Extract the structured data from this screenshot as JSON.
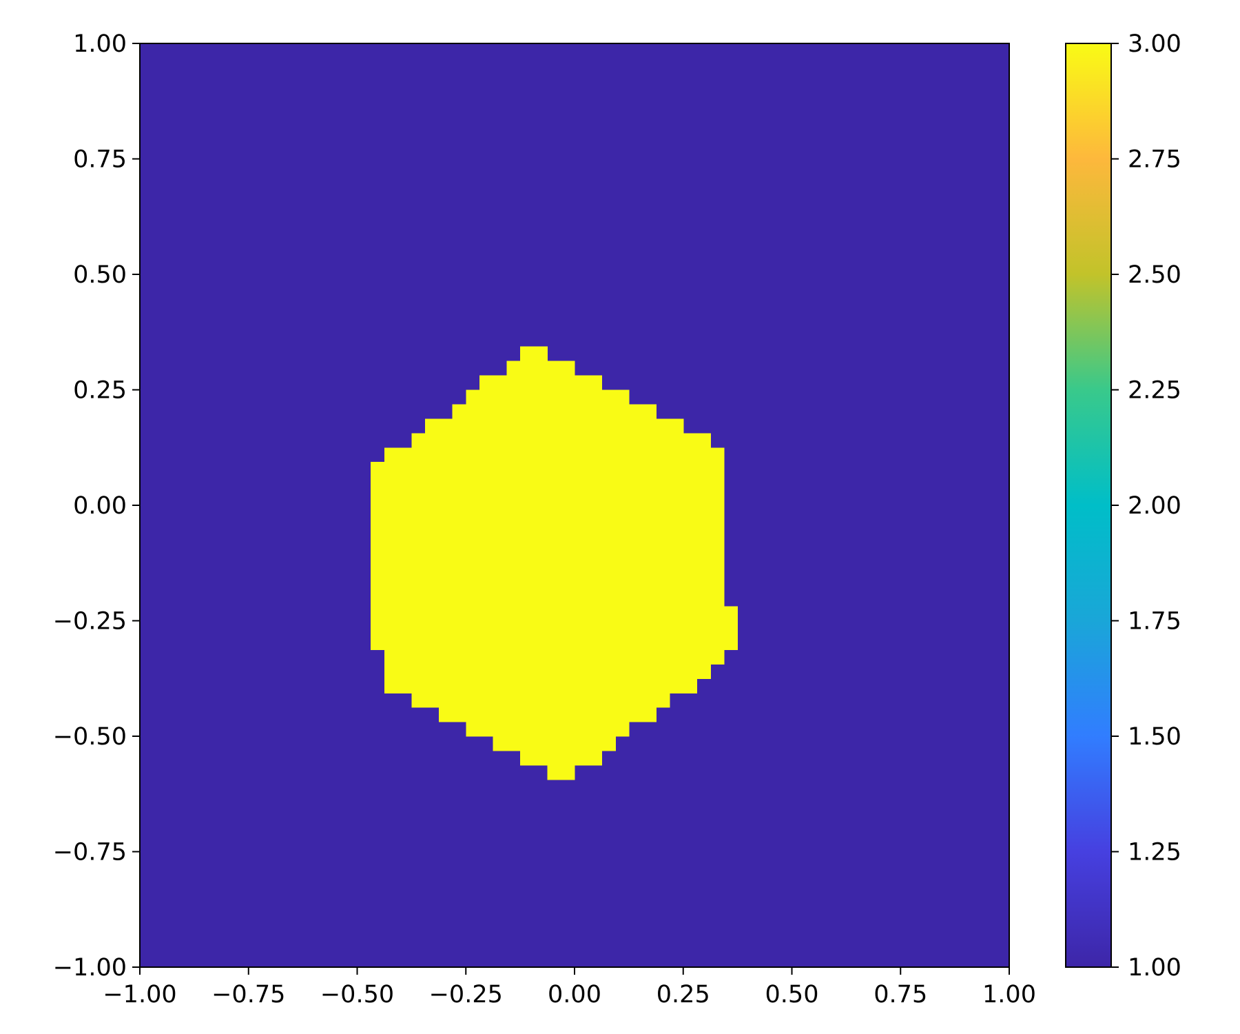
{
  "chart_data": {
    "type": "heatmap",
    "title": "",
    "xlabel": "",
    "ylabel": "",
    "xlim": [
      -1.0,
      1.0
    ],
    "ylim": [
      -1.0,
      1.0
    ],
    "grid": false,
    "x_ticks": [
      "−1.00",
      "−0.75",
      "−0.50",
      "−0.25",
      "0.00",
      "0.25",
      "0.50",
      "0.75",
      "1.00"
    ],
    "y_ticks": [
      "1.00",
      "0.75",
      "0.50",
      "0.25",
      "0.00",
      "−0.25",
      "−0.50",
      "−0.75",
      "−1.00"
    ],
    "background_value": 1.0,
    "region_value": 3.0,
    "grid_cells": 64,
    "region_rows_top_to_bottom": [
      {
        "y": [
          0.3125,
          0.34375
        ],
        "x": [
          -0.125,
          -0.0625
        ]
      },
      {
        "y": [
          0.28125,
          0.3125
        ],
        "x": [
          -0.15625,
          0.0
        ]
      },
      {
        "y": [
          0.25,
          0.28125
        ],
        "x": [
          -0.21875,
          0.0625
        ]
      },
      {
        "y": [
          0.21875,
          0.25
        ],
        "x": [
          -0.25,
          0.125
        ]
      },
      {
        "y": [
          0.1875,
          0.21875
        ],
        "x": [
          -0.28125,
          0.1875
        ]
      },
      {
        "y": [
          0.15625,
          0.1875
        ],
        "x": [
          -0.34375,
          0.25
        ]
      },
      {
        "y": [
          0.125,
          0.15625
        ],
        "x": [
          -0.375,
          0.3125
        ]
      },
      {
        "y": [
          0.09375,
          0.125
        ],
        "x": [
          -0.4375,
          0.34375
        ]
      },
      {
        "y": [
          -0.21875,
          0.09375
        ],
        "x": [
          -0.46875,
          0.34375
        ]
      },
      {
        "y": [
          -0.3125,
          -0.21875
        ],
        "x": [
          -0.46875,
          0.375
        ]
      },
      {
        "y": [
          -0.34375,
          -0.3125
        ],
        "x": [
          -0.4375,
          0.34375
        ]
      },
      {
        "y": [
          -0.375,
          -0.34375
        ],
        "x": [
          -0.4375,
          0.3125
        ]
      },
      {
        "y": [
          -0.40625,
          -0.375
        ],
        "x": [
          -0.4375,
          0.28125
        ]
      },
      {
        "y": [
          -0.4375,
          -0.40625
        ],
        "x": [
          -0.375,
          0.21875
        ]
      },
      {
        "y": [
          -0.46875,
          -0.4375
        ],
        "x": [
          -0.3125,
          0.1875
        ]
      },
      {
        "y": [
          -0.5,
          -0.46875
        ],
        "x": [
          -0.25,
          0.125
        ]
      },
      {
        "y": [
          -0.53125,
          -0.5
        ],
        "x": [
          -0.1875,
          0.09375
        ]
      },
      {
        "y": [
          -0.5625,
          -0.53125
        ],
        "x": [
          -0.125,
          0.0625
        ]
      },
      {
        "y": [
          -0.59375,
          -0.5625
        ],
        "x": [
          -0.0625,
          0.0
        ]
      }
    ],
    "colorbar": {
      "range": [
        1.0,
        3.0
      ],
      "ticks": [
        "3.00",
        "2.75",
        "2.50",
        "2.25",
        "2.00",
        "1.75",
        "1.50",
        "1.25",
        "1.00"
      ],
      "colors": {
        "1.00": "#3d26a8",
        "1.25": "#4640e0",
        "1.50": "#317dff",
        "1.75": "#1aa6d8",
        "2.00": "#00bec8",
        "2.25": "#39c98b",
        "2.50": "#c2c32a",
        "2.75": "#fdb83c",
        "3.00": "#f9fb15"
      }
    }
  }
}
